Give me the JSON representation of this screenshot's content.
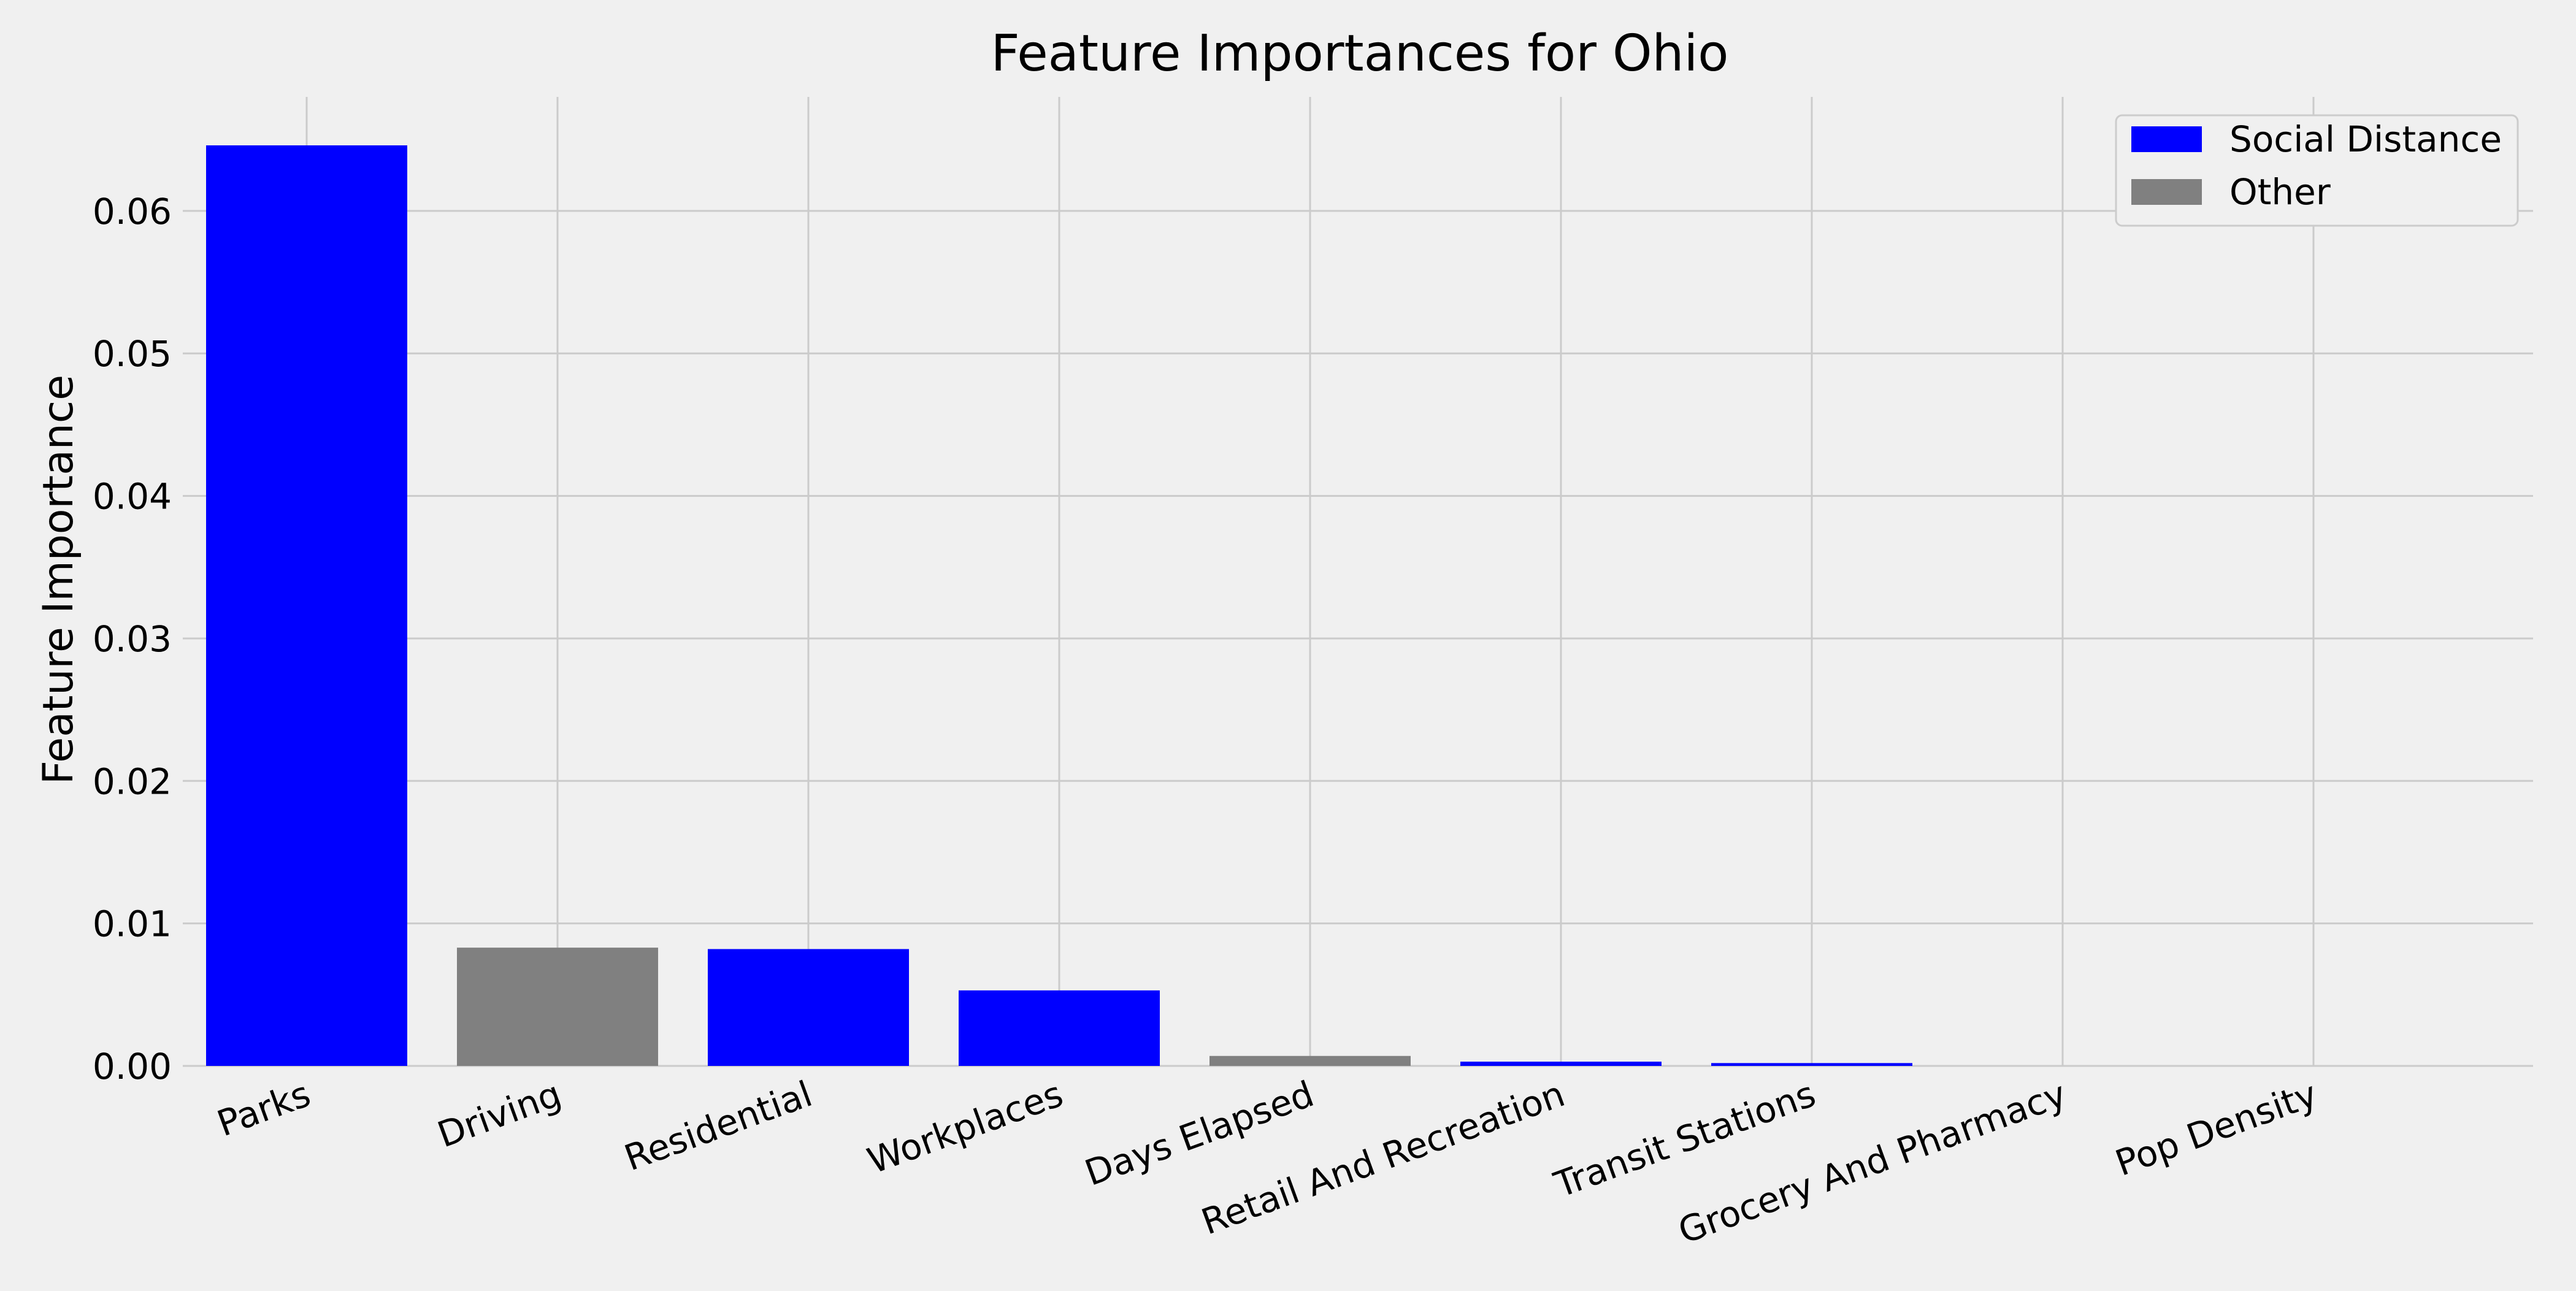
{
  "chart_data": {
    "type": "bar",
    "title": "Feature Importances for Ohio",
    "xlabel": "",
    "ylabel": "Feature Importance",
    "categories": [
      "Parks",
      "Driving",
      "Residential",
      "Workplaces",
      "Days Elapsed",
      "Retail And Recreation",
      "Transit Stations",
      "Grocery And Pharmacy",
      "Pop Density"
    ],
    "values": [
      0.0646,
      0.0083,
      0.0082,
      0.0053,
      0.0007,
      0.0003,
      0.0002,
      0.0,
      0.0
    ],
    "groups": [
      "Social Distance",
      "Other",
      "Social Distance",
      "Social Distance",
      "Other",
      "Social Distance",
      "Social Distance",
      "Social Distance",
      "Other"
    ],
    "legend": [
      {
        "name": "Social Distance",
        "color": "#0000ff"
      },
      {
        "name": "Other",
        "color": "#808080"
      }
    ],
    "legend_position": "top-right",
    "ylim": [
      0,
      0.068
    ],
    "yticks": [
      0.0,
      0.01,
      0.02,
      0.03,
      0.04,
      0.05,
      0.06
    ],
    "ytick_labels": [
      "0.00",
      "0.01",
      "0.02",
      "0.03",
      "0.04",
      "0.05",
      "0.06"
    ],
    "grid": true,
    "colors": {
      "background": "#f0f0f0",
      "grid": "#cbcbcb",
      "social_distance": "#0000ff",
      "other": "#808080"
    }
  }
}
